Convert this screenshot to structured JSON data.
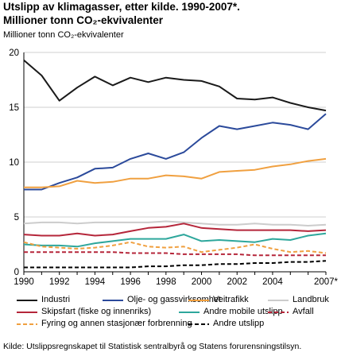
{
  "title": {
    "line1": "Utslipp av klimagasser, etter kilde. 1990-2007*.",
    "line2": "Millioner tonn CO₂-ekvivalenter"
  },
  "source": "Kilde: Utslippsregnskapet til Statistisk sentralbyrå og Statens forurensningstilsyn.",
  "chart_data": {
    "type": "line",
    "ylabel": "Millioner tonn CO₂-ekvivalenter",
    "xlabel": "",
    "ylim": [
      0,
      20
    ],
    "yticks": [
      0,
      5,
      10,
      15,
      20
    ],
    "x": [
      1990,
      1991,
      1992,
      1993,
      1994,
      1995,
      1996,
      1997,
      1998,
      1999,
      2000,
      2001,
      2002,
      2003,
      2004,
      2005,
      2006,
      2007
    ],
    "xtick_labels": [
      "1990",
      "1992",
      "1994",
      "1996",
      "1998",
      "2000",
      "2002",
      "2004",
      "2007*"
    ],
    "xtick_values": [
      1990,
      1992,
      1994,
      1996,
      1998,
      2000,
      2002,
      2004,
      2007
    ],
    "grid": "horizontal",
    "legend_position": "bottom",
    "series": [
      {
        "name": "Industri",
        "color": "#1a1a1a",
        "dash": "solid",
        "values": [
          19.3,
          17.9,
          15.6,
          16.8,
          17.8,
          17.0,
          17.7,
          17.3,
          17.7,
          17.5,
          17.4,
          16.9,
          15.8,
          15.7,
          15.9,
          15.4,
          15.0,
          14.7
        ]
      },
      {
        "name": "Olje- og gassvirksomhet",
        "color": "#2b4a9b",
        "dash": "solid",
        "values": [
          7.5,
          7.5,
          8.1,
          8.6,
          9.4,
          9.5,
          10.3,
          10.8,
          10.3,
          10.9,
          12.2,
          13.3,
          13.0,
          13.3,
          13.6,
          13.4,
          13.0,
          14.4
        ]
      },
      {
        "name": "Veitrafikk",
        "color": "#f0a040",
        "dash": "solid",
        "values": [
          7.7,
          7.7,
          7.8,
          8.3,
          8.1,
          8.2,
          8.5,
          8.5,
          8.8,
          8.7,
          8.5,
          9.1,
          9.2,
          9.3,
          9.6,
          9.8,
          10.1,
          10.3
        ]
      },
      {
        "name": "Landbruk",
        "color": "#cccccc",
        "dash": "solid",
        "values": [
          4.4,
          4.5,
          4.5,
          4.4,
          4.5,
          4.5,
          4.5,
          4.5,
          4.6,
          4.5,
          4.4,
          4.3,
          4.3,
          4.4,
          4.3,
          4.3,
          4.2,
          4.3
        ]
      },
      {
        "name": "Skipsfart (fiske og innenriks)",
        "color": "#b5263a",
        "dash": "solid",
        "values": [
          3.4,
          3.3,
          3.3,
          3.5,
          3.3,
          3.4,
          3.7,
          4.0,
          4.1,
          4.4,
          4.0,
          3.9,
          3.8,
          3.8,
          3.8,
          3.8,
          3.7,
          3.8
        ]
      },
      {
        "name": "Andre mobile utslipp",
        "color": "#2ea79c",
        "dash": "solid",
        "values": [
          2.5,
          2.4,
          2.4,
          2.3,
          2.6,
          2.8,
          3.0,
          3.0,
          3.0,
          3.4,
          2.8,
          2.9,
          2.8,
          2.7,
          3.0,
          2.9,
          3.3,
          3.5
        ]
      },
      {
        "name": "Avfall",
        "color": "#b5263a",
        "dash": "dashed",
        "values": [
          1.8,
          1.8,
          1.8,
          1.8,
          1.8,
          1.8,
          1.7,
          1.7,
          1.7,
          1.6,
          1.6,
          1.6,
          1.6,
          1.5,
          1.5,
          1.5,
          1.5,
          1.5
        ]
      },
      {
        "name": "Fyring og annen stasjonær forbrenning",
        "color": "#f0a040",
        "dash": "dashed",
        "values": [
          2.7,
          2.3,
          2.2,
          2.1,
          2.2,
          2.4,
          2.7,
          2.3,
          2.2,
          2.3,
          1.8,
          2.0,
          2.2,
          2.5,
          2.1,
          1.8,
          1.9,
          1.7
        ]
      },
      {
        "name": "Andre utslipp",
        "color": "#000000",
        "dash": "dashed",
        "values": [
          0.4,
          0.4,
          0.4,
          0.4,
          0.4,
          0.4,
          0.4,
          0.5,
          0.5,
          0.6,
          0.6,
          0.7,
          0.7,
          0.8,
          0.8,
          0.9,
          0.9,
          1.0
        ]
      }
    ]
  }
}
